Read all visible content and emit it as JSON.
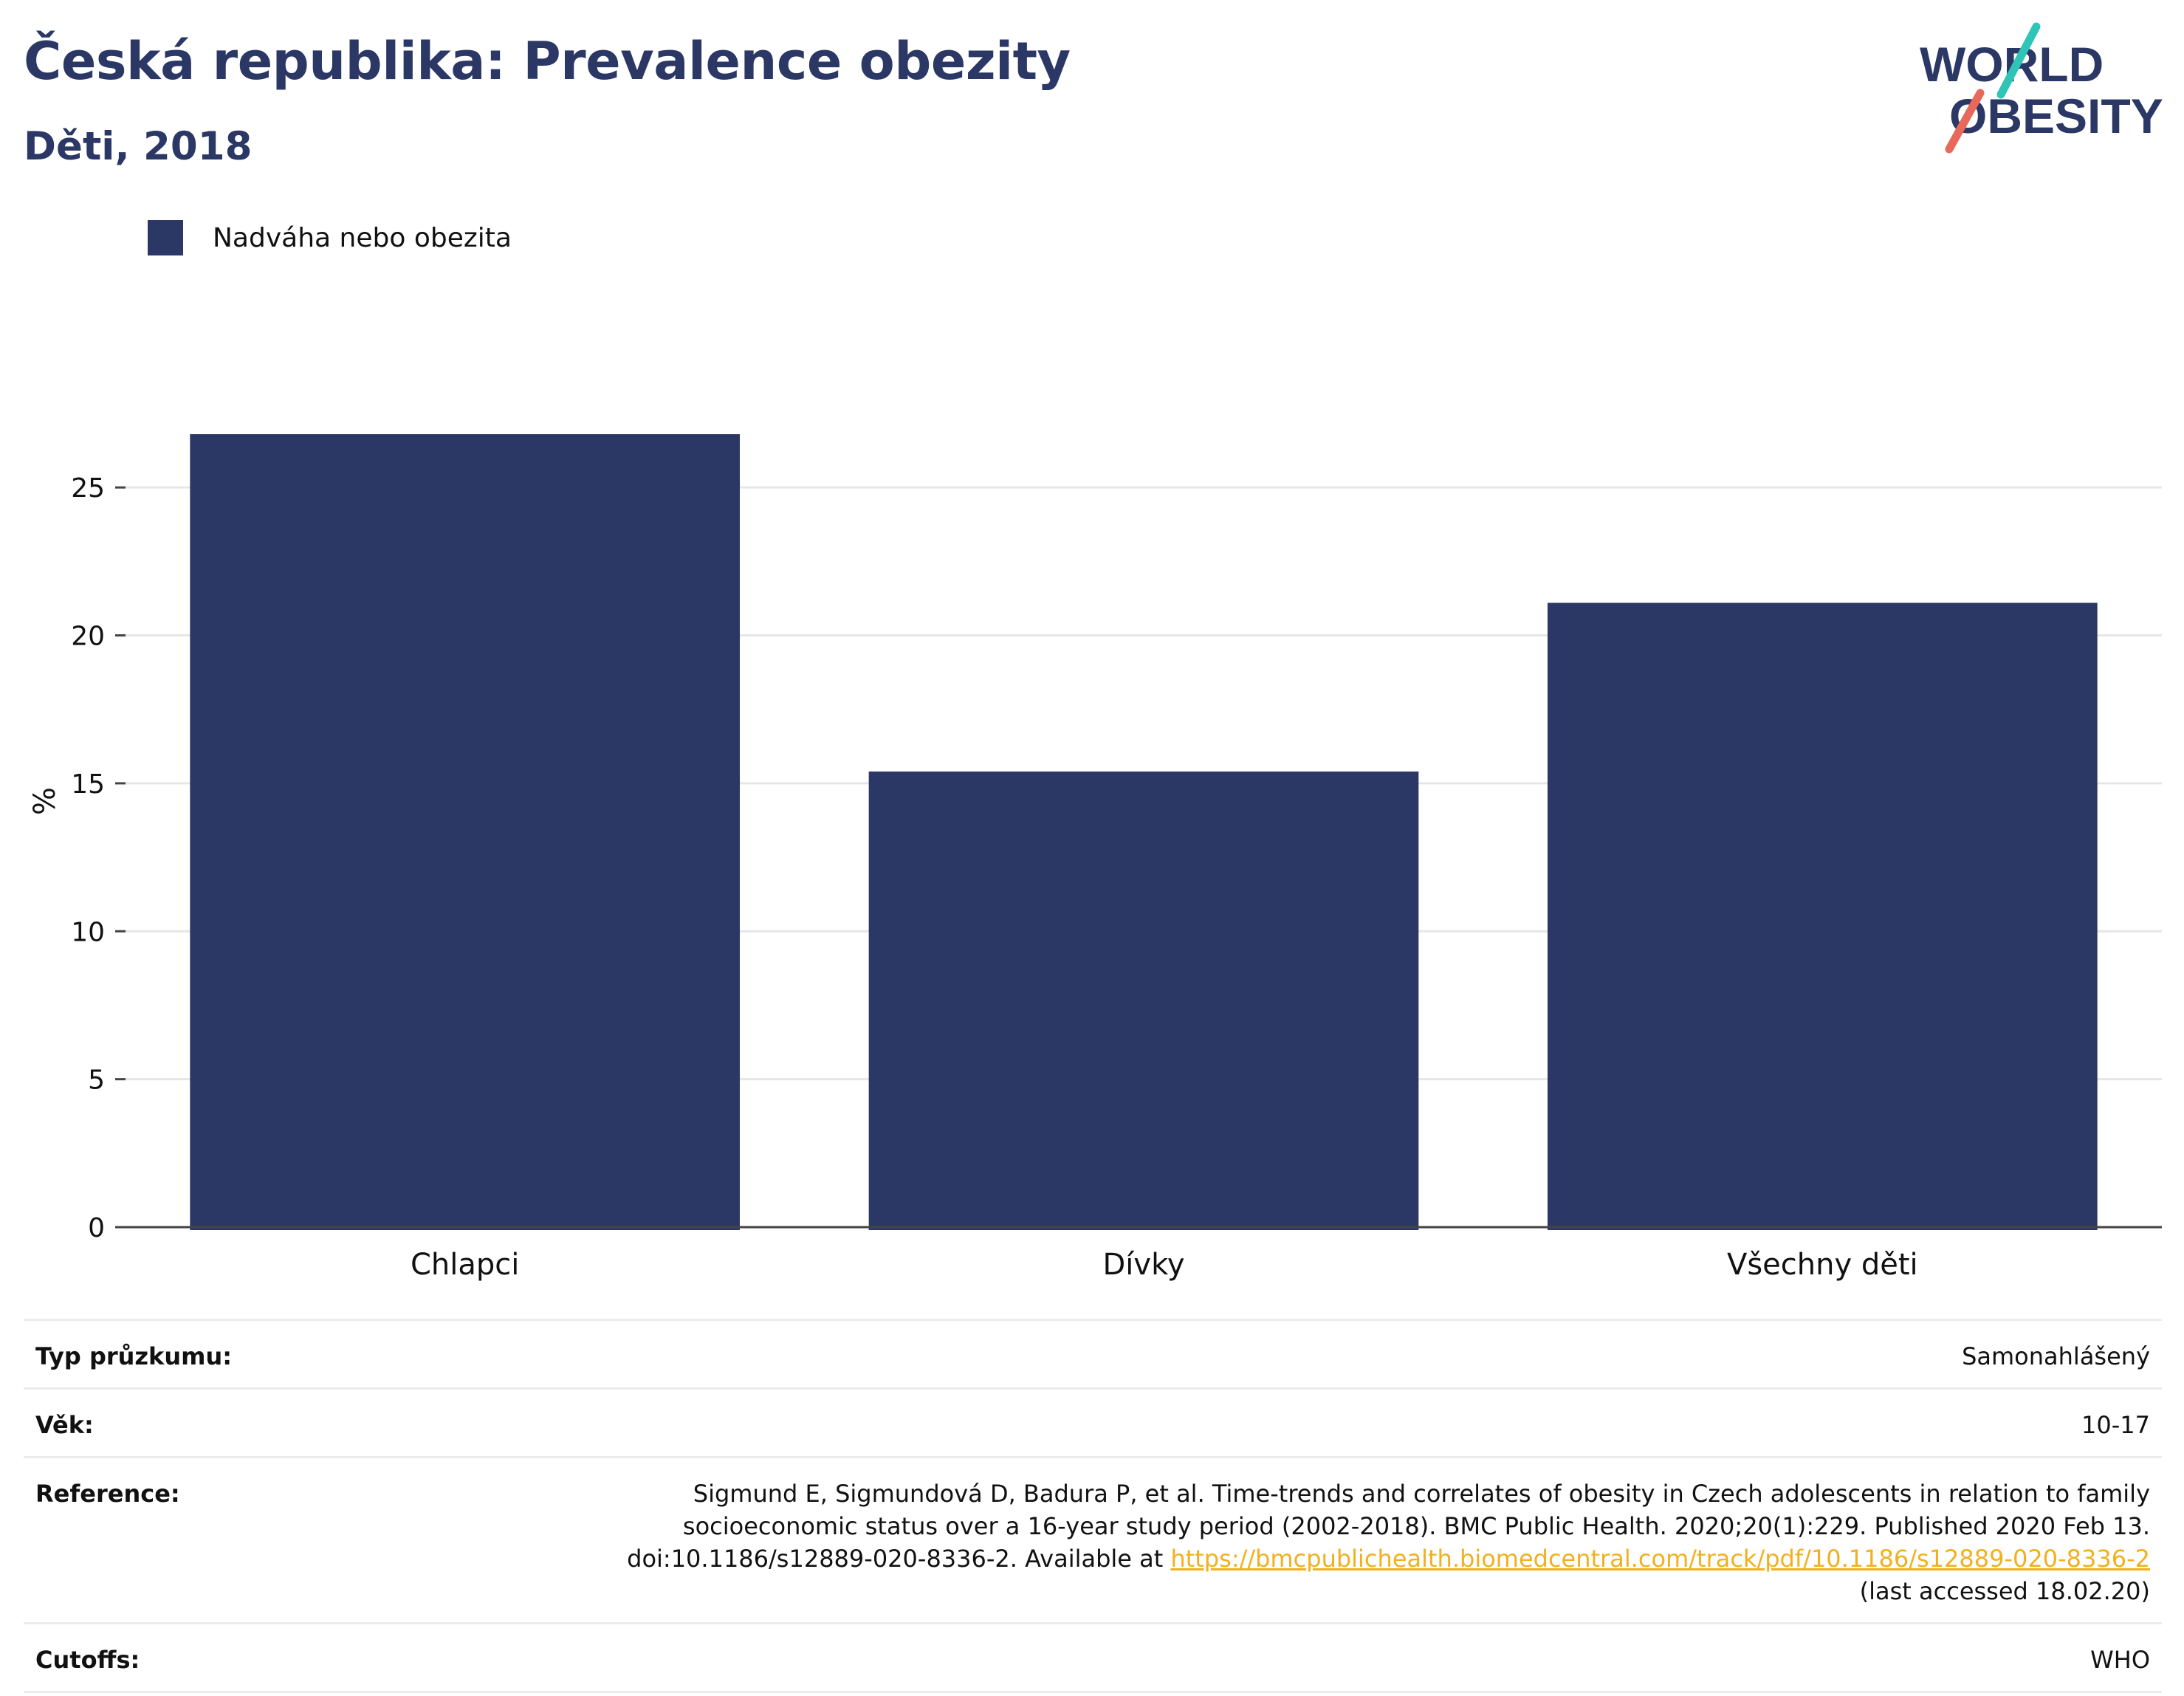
{
  "header": {
    "title": "Česká republika: Prevalence obezity",
    "subtitle": "Děti, 2018"
  },
  "logo": {
    "line1": "WORLD",
    "line2": "OBESITY",
    "slash_colors": [
      "#2ec4b6",
      "#e8685a"
    ],
    "text_color": "#2b3764"
  },
  "colors": {
    "bar": "#2b3764",
    "grid": "#e6e6e6",
    "axis": "#444444",
    "link": "#f2b01e"
  },
  "chart_data": {
    "type": "bar",
    "categories": [
      "Chlapci",
      "Dívky",
      "Všechny děti"
    ],
    "series": [
      {
        "name": "Nadváha nebo obezita",
        "values": [
          26.8,
          15.4,
          21.1
        ]
      }
    ],
    "ylabel": "%",
    "ylim": [
      0,
      27.5
    ],
    "yticks": [
      0,
      5,
      10,
      15,
      20,
      25
    ],
    "grid": true,
    "legend_position": "top-left"
  },
  "meta": {
    "survey_type_label": "Typ průzkumu:",
    "survey_type_value": "Samonahlášený",
    "age_label": "Věk:",
    "age_value": "10-17",
    "reference_label": "Reference:",
    "reference_line1": "Sigmund E, Sigmundová D, Badura P, et al. Time-trends and correlates of obesity in Czech adolescents in relation to family",
    "reference_line2": "socioeconomic status over a 16-year study period (2002-2018). BMC Public Health. 2020;20(1):229. Published 2020 Feb 13.",
    "reference_line3_prefix": "doi:10.1186/s12889-020-8336-2. Available at ",
    "reference_link": "https://bmcpublichealth.biomedcentral.com/track/pdf/10.1186/s12889-020-8336-2",
    "reference_line4": "(last accessed 18.02.20)",
    "cutoffs_label": "Cutoffs:",
    "cutoffs_value": "WHO"
  }
}
